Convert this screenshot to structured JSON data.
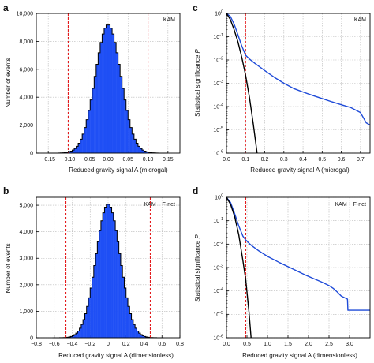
{
  "colors": {
    "histogram_fill": "#1f4ff5",
    "envelope_line": "#000000",
    "threshold_line": "#e41a1c",
    "curve_measured": "#1f4bd8",
    "curve_model": "#000000",
    "grid": "#b9b9b9"
  },
  "chart_data": [
    {
      "id": "a",
      "type": "bar",
      "panel_label": "a",
      "badge": "KAM",
      "xlabel": "Reduced gravity signal A (microgal)",
      "ylabel": "Number of events",
      "xlim": [
        -0.18,
        0.18
      ],
      "ylim": [
        0,
        10000
      ],
      "xticks": [
        -0.15,
        -0.1,
        -0.05,
        0.0,
        0.05,
        0.1,
        0.15
      ],
      "xtick_labels": [
        "−0.15",
        "−0.10",
        "−0.05",
        "0.00",
        "0.05",
        "0.10",
        "0.15"
      ],
      "yticks": [
        0,
        2000,
        4000,
        6000,
        8000,
        10000
      ],
      "ytick_labels": [
        "0",
        "2,000",
        "4,000",
        "6,000",
        "8,000",
        "10,000"
      ],
      "grid": true,
      "thresholds": [
        -0.1,
        0.1
      ],
      "histogram": {
        "center": 0.0,
        "peak": 9200,
        "sigma": 0.032,
        "bin_width": 0.005,
        "x_from": -0.15,
        "x_to": 0.15
      }
    },
    {
      "id": "b",
      "type": "bar",
      "panel_label": "b",
      "badge": "KAM + F-net",
      "xlabel": "Reduced gravity signal A (dimensionless)",
      "ylabel": "Number of events",
      "xlim": [
        -0.8,
        0.8
      ],
      "ylim": [
        0,
        5300
      ],
      "xticks": [
        -0.8,
        -0.6,
        -0.4,
        -0.2,
        0.0,
        0.2,
        0.4,
        0.6,
        0.8
      ],
      "xtick_labels": [
        "−0.8",
        "−0.6",
        "−0.4",
        "−0.2",
        "0",
        "0.2",
        "0.4",
        "0.6",
        "0.8"
      ],
      "yticks": [
        0,
        1000,
        2000,
        3000,
        4000,
        5000
      ],
      "ytick_labels": [
        "0",
        "1,000",
        "2,000",
        "3,000",
        "4,000",
        "5,000"
      ],
      "grid": true,
      "thresholds": [
        -0.47,
        0.47
      ],
      "histogram": {
        "center": 0.0,
        "peak": 5050,
        "sigma": 0.135,
        "bin_width": 0.02,
        "x_from": -0.62,
        "x_to": 0.62
      }
    },
    {
      "id": "c",
      "type": "line",
      "panel_label": "c",
      "badge": "KAM",
      "xlabel": "Reduced gravity signal A (microgal)",
      "ylabel": "Statistical significance P",
      "ylabel_italic": "P",
      "x_scale": "linear",
      "y_scale": "log",
      "xlim": [
        0,
        0.75
      ],
      "ylim": [
        1e-06,
        1
      ],
      "xticks": [
        0.0,
        0.1,
        0.2,
        0.3,
        0.4,
        0.5,
        0.6,
        0.7
      ],
      "xtick_labels": [
        "0.0",
        "0.1",
        "0.2",
        "0.3",
        "0.4",
        "0.5",
        "0.6",
        "0.7"
      ],
      "yticks": [
        1,
        0.1,
        0.01,
        0.001,
        0.0001,
        1e-05,
        1e-06
      ],
      "ytick_labels": [
        {
          "base": "10",
          "exp": "0"
        },
        {
          "base": "10",
          "exp": "-1"
        },
        {
          "base": "10",
          "exp": "-2"
        },
        {
          "base": "10",
          "exp": "-3"
        },
        {
          "base": "10",
          "exp": "-4"
        },
        {
          "base": "10",
          "exp": "-5"
        },
        {
          "base": "10",
          "exp": "-6"
        }
      ],
      "grid": true,
      "thresholds": [
        0.1
      ],
      "series": [
        {
          "x": [
            0.0,
            0.02,
            0.04,
            0.06,
            0.08,
            0.1,
            0.12,
            0.15,
            0.2,
            0.25,
            0.3,
            0.35,
            0.4,
            0.45,
            0.5,
            0.55,
            0.6,
            0.65,
            0.7,
            0.73,
            0.75
          ],
          "y": [
            1,
            0.75,
            0.35,
            0.12,
            0.04,
            0.016,
            0.011,
            0.007,
            0.0035,
            0.0018,
            0.001,
            0.0006,
            0.00042,
            0.0003,
            0.00022,
            0.00016,
            0.00012,
            9e-05,
            5.5e-05,
            2e-05,
            1.6e-05
          ],
          "style": "measured"
        },
        {
          "x": [
            0.0,
            0.02,
            0.04,
            0.06,
            0.08,
            0.1,
            0.12,
            0.14,
            0.16
          ],
          "y": [
            1,
            0.55,
            0.2,
            0.06,
            0.013,
            0.0022,
            0.00025,
            1.8e-05,
            1e-06
          ],
          "style": "model"
        }
      ]
    },
    {
      "id": "d",
      "type": "line",
      "panel_label": "d",
      "badge": "KAM + F-net",
      "xlabel": "Reduced gravity signal A (dimensionless)",
      "ylabel": "Statistical significance P",
      "ylabel_italic": "P",
      "x_scale": "linear",
      "y_scale": "log",
      "xlim": [
        0,
        3.5
      ],
      "ylim": [
        1e-06,
        1
      ],
      "xticks": [
        0.0,
        0.5,
        1.0,
        1.5,
        2.0,
        2.5,
        3.0
      ],
      "xtick_labels": [
        "0.0",
        "0.5",
        "1.0",
        "1.5",
        "2.0",
        "2.5",
        "3.0"
      ],
      "yticks": [
        1,
        0.1,
        0.01,
        0.001,
        0.0001,
        1e-05,
        1e-06
      ],
      "ytick_labels": [
        {
          "base": "10",
          "exp": "0"
        },
        {
          "base": "10",
          "exp": "-1"
        },
        {
          "base": "10",
          "exp": "-2"
        },
        {
          "base": "10",
          "exp": "-3"
        },
        {
          "base": "10",
          "exp": "-4"
        },
        {
          "base": "10",
          "exp": "-5"
        },
        {
          "base": "10",
          "exp": "-6"
        }
      ],
      "grid": true,
      "thresholds": [
        0.47
      ],
      "series": [
        {
          "x": [
            0.0,
            0.1,
            0.2,
            0.3,
            0.4,
            0.47,
            0.6,
            0.8,
            1.0,
            1.3,
            1.6,
            1.9,
            2.1,
            2.3,
            2.5,
            2.6,
            2.7,
            2.8,
            2.95,
            2.96,
            3.5
          ],
          "y": [
            1,
            0.6,
            0.2,
            0.06,
            0.022,
            0.015,
            0.009,
            0.005,
            0.003,
            0.0016,
            0.0009,
            0.0005,
            0.00035,
            0.00025,
            0.00017,
            0.00013,
            9e-05,
            6e-05,
            4.5e-05,
            1.5e-05,
            1.5e-05
          ],
          "style": "measured"
        },
        {
          "x": [
            0.0,
            0.1,
            0.2,
            0.3,
            0.4,
            0.47,
            0.55,
            0.6
          ],
          "y": [
            1,
            0.5,
            0.15,
            0.025,
            0.002,
            0.0003,
            1.2e-05,
            1e-06
          ],
          "style": "model"
        }
      ]
    }
  ]
}
